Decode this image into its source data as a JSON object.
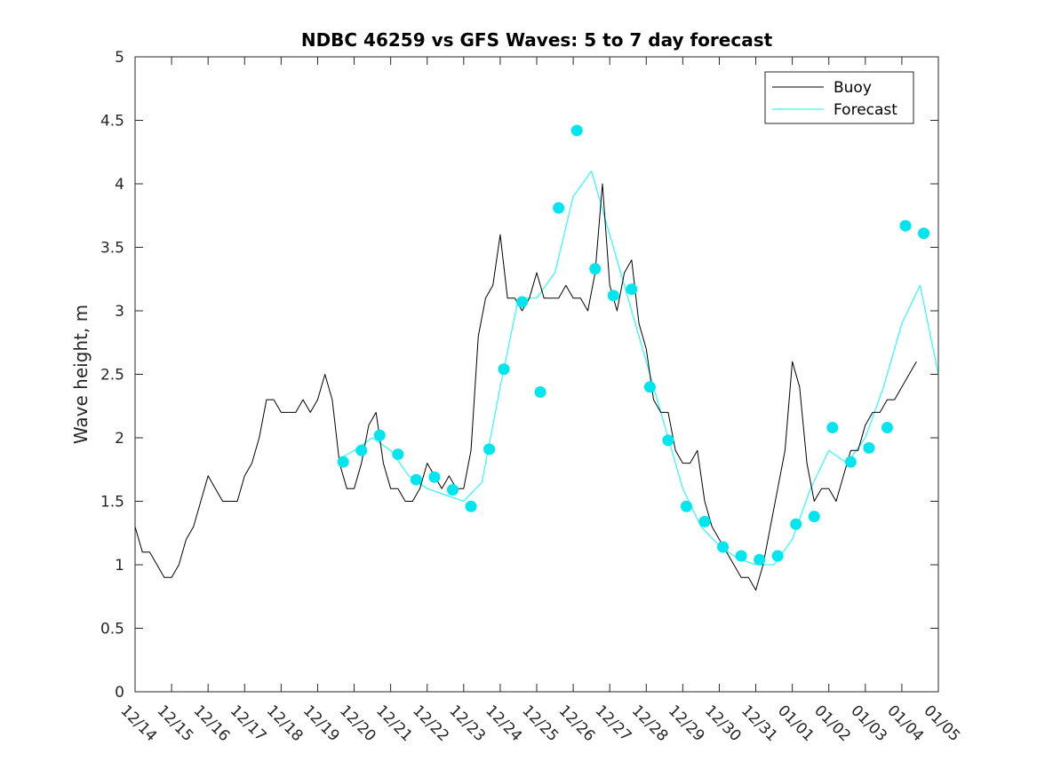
{
  "chart_data": {
    "type": "line",
    "title": "NDBC 46259 vs GFS Waves: 5 to 7 day forecast",
    "xlabel": "",
    "ylabel": "Wave height, m",
    "xlim": [
      0,
      22
    ],
    "ylim": [
      0,
      5
    ],
    "yticks": [
      0,
      0.5,
      1,
      1.5,
      2,
      2.5,
      3,
      3.5,
      4,
      4.5,
      5
    ],
    "ytick_labels": [
      "0",
      "0.5",
      "1",
      "1.5",
      "2",
      "2.5",
      "3",
      "3.5",
      "4",
      "4.5",
      "5"
    ],
    "xticks": [
      0,
      1,
      2,
      3,
      4,
      5,
      6,
      7,
      8,
      9,
      10,
      11,
      12,
      13,
      14,
      15,
      16,
      17,
      18,
      19,
      20,
      21,
      22
    ],
    "xtick_labels": [
      "12/14",
      "12/15",
      "12/16",
      "12/17",
      "12/18",
      "12/19",
      "12/20",
      "12/21",
      "12/22",
      "12/23",
      "12/24",
      "12/25",
      "12/26",
      "12/27",
      "12/28",
      "12/29",
      "12/30",
      "12/31",
      "01/01",
      "01/02",
      "01/03",
      "01/04",
      "01/05"
    ],
    "legend": {
      "position": "top-right",
      "entries": [
        "Buoy",
        "Forecast"
      ]
    },
    "colors": {
      "buoy": "#000000",
      "forecast": "#00ffff",
      "markers": "#00e5ee"
    },
    "series": [
      {
        "name": "Buoy",
        "x": [
          0,
          0.2,
          0.4,
          0.6,
          0.8,
          1.0,
          1.2,
          1.4,
          1.6,
          1.8,
          2.0,
          2.2,
          2.4,
          2.6,
          2.8,
          3.0,
          3.2,
          3.4,
          3.6,
          3.8,
          4.0,
          4.2,
          4.4,
          4.6,
          4.8,
          5.0,
          5.2,
          5.4,
          5.6,
          5.8,
          6.0,
          6.2,
          6.4,
          6.6,
          6.8,
          7.0,
          7.2,
          7.4,
          7.6,
          7.8,
          8.0,
          8.2,
          8.4,
          8.6,
          8.8,
          9.0,
          9.2,
          9.4,
          9.6,
          9.8,
          10.0,
          10.2,
          10.4,
          10.6,
          10.8,
          11.0,
          11.2,
          11.4,
          11.6,
          11.8,
          12.0,
          12.2,
          12.4,
          12.6,
          12.8,
          13.0,
          13.2,
          13.4,
          13.6,
          13.8,
          14.0,
          14.2,
          14.4,
          14.6,
          14.8,
          15.0,
          15.2,
          15.4,
          15.6,
          15.8,
          16.0,
          16.2,
          16.4,
          16.6,
          16.8,
          17.0,
          17.2,
          17.4,
          17.6,
          17.8,
          18.0,
          18.2,
          18.4,
          18.6,
          18.8,
          19.0,
          19.2,
          19.4,
          19.6,
          19.8,
          20.0,
          20.2,
          20.4,
          20.6,
          20.8,
          21.0,
          21.2,
          21.4
        ],
        "values": [
          1.3,
          1.1,
          1.1,
          1.0,
          0.9,
          0.9,
          1.0,
          1.2,
          1.3,
          1.5,
          1.7,
          1.6,
          1.5,
          1.5,
          1.5,
          1.7,
          1.8,
          2.0,
          2.3,
          2.3,
          2.2,
          2.2,
          2.2,
          2.3,
          2.2,
          2.3,
          2.5,
          2.3,
          1.8,
          1.6,
          1.6,
          1.8,
          2.1,
          2.2,
          1.8,
          1.6,
          1.6,
          1.5,
          1.5,
          1.6,
          1.8,
          1.7,
          1.6,
          1.7,
          1.6,
          1.6,
          1.9,
          2.8,
          3.1,
          3.2,
          3.6,
          3.1,
          3.1,
          3.0,
          3.1,
          3.3,
          3.1,
          3.1,
          3.1,
          3.2,
          3.1,
          3.1,
          3.0,
          3.3,
          4.0,
          3.2,
          3.0,
          3.3,
          3.4,
          2.9,
          2.7,
          2.3,
          2.2,
          2.2,
          1.9,
          1.8,
          1.8,
          1.9,
          1.5,
          1.3,
          1.2,
          1.1,
          1.0,
          0.9,
          0.9,
          0.8,
          1.0,
          1.3,
          1.6,
          1.9,
          2.6,
          2.4,
          1.8,
          1.5,
          1.6,
          1.6,
          1.5,
          1.7,
          1.9,
          1.9,
          2.1,
          2.2,
          2.2,
          2.3,
          2.3,
          2.4,
          2.5,
          2.6
        ]
      },
      {
        "name": "Forecast",
        "x": [
          5.7,
          6.0,
          6.5,
          7.0,
          7.5,
          8.0,
          8.5,
          9.0,
          9.5,
          10.0,
          10.5,
          11.0,
          11.5,
          12.0,
          12.5,
          13.0,
          13.5,
          14.0,
          14.5,
          15.0,
          15.5,
          16.0,
          16.5,
          17.0,
          17.5,
          18.0,
          18.5,
          19.0,
          19.5,
          20.0,
          20.5,
          21.0,
          21.5,
          22.0
        ],
        "values": [
          1.85,
          1.9,
          2.0,
          1.9,
          1.7,
          1.6,
          1.55,
          1.5,
          1.65,
          2.4,
          3.1,
          3.1,
          3.3,
          3.9,
          4.1,
          3.6,
          3.1,
          2.6,
          2.1,
          1.6,
          1.3,
          1.15,
          1.05,
          1.0,
          1.0,
          1.2,
          1.6,
          1.9,
          1.8,
          2.0,
          2.4,
          2.9,
          3.2,
          2.5
        ]
      },
      {
        "name": "Forecast markers",
        "x": [
          5.7,
          6.2,
          6.7,
          7.2,
          7.7,
          8.2,
          8.7,
          9.2,
          9.7,
          10.1,
          10.6,
          11.1,
          11.6,
          12.1,
          12.6,
          13.1,
          13.6,
          14.1,
          14.6,
          15.1,
          15.6,
          16.1,
          16.6,
          17.1,
          17.6,
          18.1,
          18.6,
          19.1,
          19.6,
          20.1,
          20.6,
          21.1,
          21.6
        ],
        "values": [
          1.81,
          1.9,
          2.02,
          1.87,
          1.67,
          1.69,
          1.59,
          1.46,
          1.91,
          2.54,
          3.07,
          2.36,
          3.81,
          4.42,
          3.33,
          3.12,
          3.17,
          2.4,
          1.98,
          1.46,
          1.34,
          1.14,
          1.07,
          1.04,
          1.07,
          1.32,
          1.38,
          2.08,
          1.81,
          1.92,
          2.08,
          3.67,
          3.61
        ]
      }
    ]
  }
}
